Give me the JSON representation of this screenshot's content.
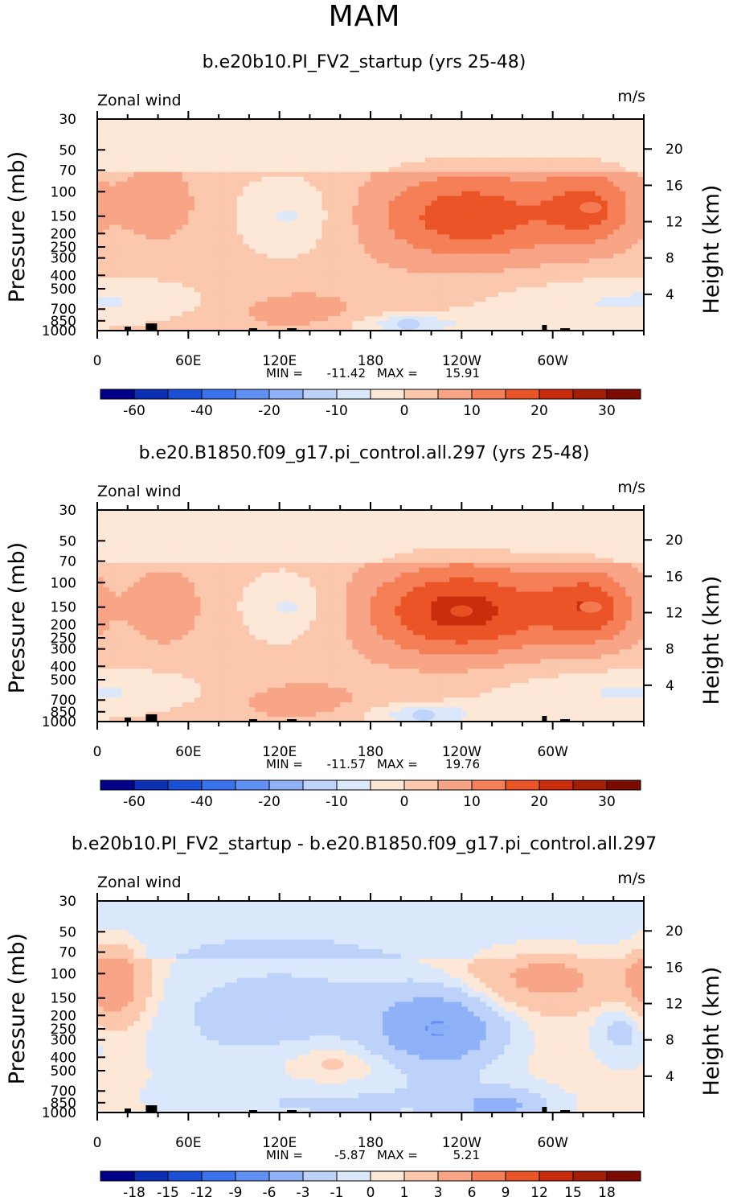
{
  "figure_title": "MAM",
  "chart_data": [
    {
      "type": "heatmap",
      "title": "b.e20b10.PI_FV2_startup (yrs 25-48)",
      "variable_label": "Zonal wind",
      "units": "m/s",
      "ylabel_left": "Pressure (mb)",
      "ylabel_right": "Height (km)",
      "pressure_ticks": [
        "30",
        "50",
        "70",
        "100",
        "150",
        "200",
        "250",
        "300",
        "400",
        "500",
        "700",
        "850",
        "1000"
      ],
      "height_ticks": [
        "20",
        "16",
        "12",
        "8",
        "4"
      ],
      "x_ticks": [
        "0",
        "60E",
        "120E",
        "180",
        "120W",
        "60W"
      ],
      "stats": {
        "min_label": "MIN =",
        "min": "-11.42",
        "max_label": "MAX =",
        "max": "15.91"
      },
      "colorbar_labels": [
        "-60",
        "-40",
        "-20",
        "-10",
        "0",
        "10",
        "20",
        "30"
      ],
      "features": [
        {
          "lon": 125,
          "p": 150,
          "value": -7
        },
        {
          "lon": 245,
          "p": 150,
          "value": 15.91
        },
        {
          "lon": 325,
          "p": 130,
          "value": 12
        },
        {
          "lon": 40,
          "p": 120,
          "value": 6
        },
        {
          "lon": 130,
          "p": 700,
          "value": 5
        },
        {
          "lon": 205,
          "p": 900,
          "value": -11.42
        }
      ]
    },
    {
      "type": "heatmap",
      "title": "b.e20.B1850.f09_g17.pi_control.all.297 (yrs 25-48)",
      "variable_label": "Zonal wind",
      "units": "m/s",
      "ylabel_left": "Pressure (mb)",
      "ylabel_right": "Height (km)",
      "pressure_ticks": [
        "30",
        "50",
        "70",
        "100",
        "150",
        "200",
        "250",
        "300",
        "400",
        "500",
        "700",
        "850",
        "1000"
      ],
      "height_ticks": [
        "20",
        "16",
        "12",
        "8",
        "4"
      ],
      "x_ticks": [
        "0",
        "60E",
        "120E",
        "180",
        "120W",
        "60W"
      ],
      "stats": {
        "min_label": "MIN =",
        "min": "-11.57",
        "max_label": "MAX =",
        "max": "19.76"
      },
      "colorbar_labels": [
        "-60",
        "-40",
        "-20",
        "-10",
        "0",
        "10",
        "20",
        "30"
      ],
      "features": [
        {
          "lon": 125,
          "p": 150,
          "value": -6
        },
        {
          "lon": 240,
          "p": 160,
          "value": 19.76
        },
        {
          "lon": 325,
          "p": 150,
          "value": 14
        },
        {
          "lon": 45,
          "p": 150,
          "value": 6
        },
        {
          "lon": 130,
          "p": 700,
          "value": 5
        },
        {
          "lon": 215,
          "p": 900,
          "value": -11.57
        }
      ]
    },
    {
      "type": "heatmap",
      "title": "b.e20b10.PI_FV2_startup - b.e20.B1850.f09_g17.pi_control.all.297",
      "variable_label": "Zonal wind",
      "units": "m/s",
      "ylabel_left": "Pressure (mb)",
      "ylabel_right": "Height (km)",
      "pressure_ticks": [
        "30",
        "50",
        "70",
        "100",
        "150",
        "200",
        "250",
        "300",
        "400",
        "500",
        "700",
        "850",
        "1000"
      ],
      "height_ticks": [
        "20",
        "16",
        "12",
        "8",
        "4"
      ],
      "x_ticks": [
        "0",
        "60E",
        "120E",
        "180",
        "120W",
        "60W"
      ],
      "stats": {
        "min_label": "MIN =",
        "min": "-5.87",
        "max_label": "MAX =",
        "max": "5.21"
      },
      "colorbar_labels": [
        "-18",
        "-15",
        "-12",
        "-9",
        "-6",
        "-3",
        "-1",
        "0",
        "1",
        "3",
        "6",
        "9",
        "12",
        "15",
        "18"
      ],
      "features": [
        {
          "lon": 225,
          "p": 250,
          "value": -5.87
        },
        {
          "lon": 120,
          "p": 200,
          "value": -2
        },
        {
          "lon": 10,
          "p": 120,
          "value": 5.21
        },
        {
          "lon": 295,
          "p": 110,
          "value": 3.5
        },
        {
          "lon": 345,
          "p": 250,
          "value": -1.5
        },
        {
          "lon": 155,
          "p": 450,
          "value": 1.5
        }
      ]
    }
  ],
  "colors": {
    "scale": [
      "#00008b",
      "#0a2fb5",
      "#1a50d6",
      "#3a72ee",
      "#6190f5",
      "#8fb1f8",
      "#bcd2f9",
      "#dbe8fb",
      "#fde7d6",
      "#fbc7ad",
      "#f8a486",
      "#f57f57",
      "#ea5426",
      "#c92d0c",
      "#a41d05",
      "#7c0c00"
    ],
    "topography": "#000000"
  }
}
